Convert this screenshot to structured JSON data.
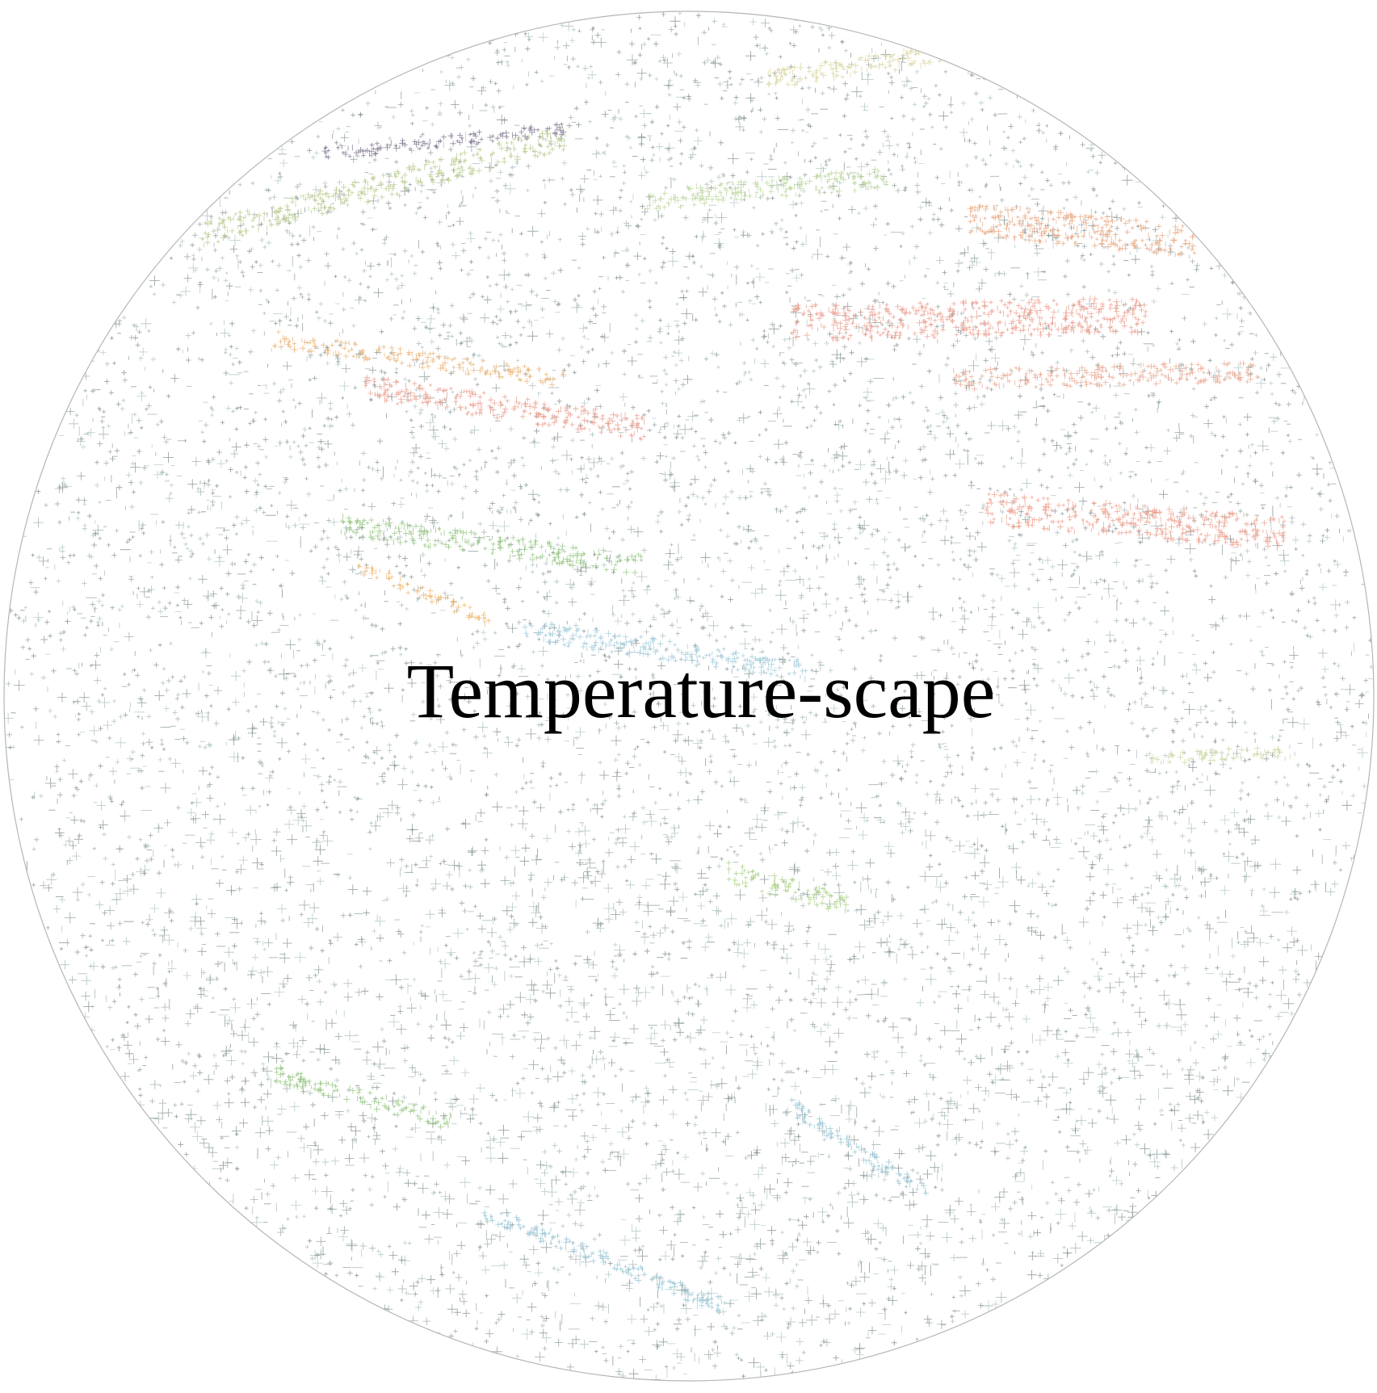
{
  "title": "Temperature-scape"
}
